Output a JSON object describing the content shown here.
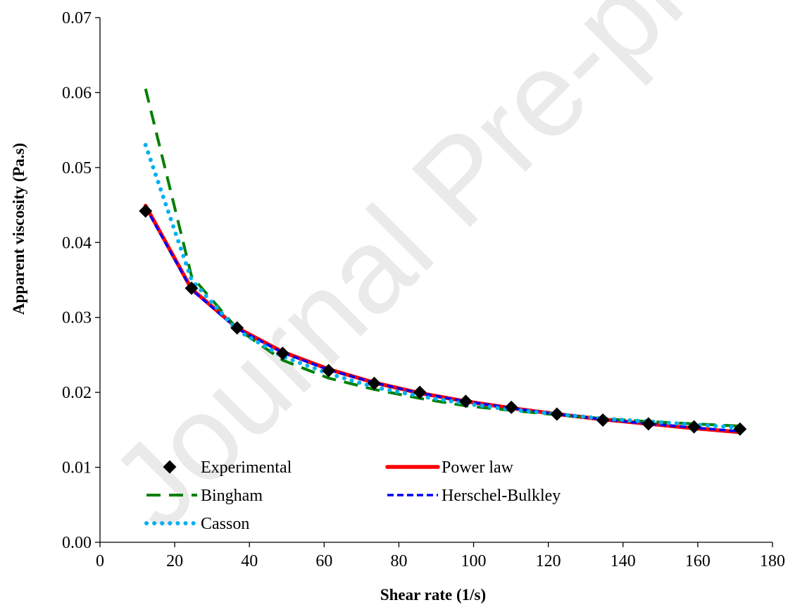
{
  "watermark": "Journal Pre-proofs",
  "chart_data": {
    "type": "line",
    "xlabel": "Shear rate (1/s)",
    "ylabel": "Apparent viscosity (Pa.s)",
    "xlim": [
      0,
      180
    ],
    "ylim": [
      0,
      0.07
    ],
    "xticks": [
      "0",
      "20",
      "40",
      "60",
      "80",
      "100",
      "120",
      "140",
      "160",
      "180"
    ],
    "yticks": [
      "0.00",
      "0.01",
      "0.02",
      "0.03",
      "0.04",
      "0.05",
      "0.06",
      "0.07"
    ],
    "grid": false,
    "legend_position": "bottom-left",
    "x": [
      12.2,
      24.5,
      36.7,
      48.9,
      61.2,
      73.4,
      85.6,
      97.9,
      110.1,
      122.3,
      134.6,
      146.8,
      159.0,
      171.3
    ],
    "series": [
      {
        "name": "Experimental",
        "style": "marker-diamond",
        "color": "#000000",
        "values": [
          0.0442,
          0.0339,
          0.0286,
          0.0252,
          0.0229,
          0.0212,
          0.02,
          0.0188,
          0.018,
          0.0171,
          0.0163,
          0.0158,
          0.0154,
          0.0151
        ]
      },
      {
        "name": "Power law",
        "style": "solid-thick",
        "color": "#ff0000",
        "values": [
          0.0449,
          0.0338,
          0.0286,
          0.0254,
          0.0231,
          0.0213,
          0.0199,
          0.0188,
          0.0179,
          0.0171,
          0.0164,
          0.0158,
          0.0152,
          0.0147
        ]
      },
      {
        "name": "Bingham",
        "style": "long-dash",
        "color": "#008000",
        "values": [
          0.0605,
          0.0355,
          0.0285,
          0.0243,
          0.0219,
          0.0204,
          0.0192,
          0.0182,
          0.0176,
          0.017,
          0.0165,
          0.0161,
          0.0158,
          0.0155
        ]
      },
      {
        "name": "Herschel-Bulkley",
        "style": "short-dash",
        "color": "#0000ff",
        "values": [
          0.0447,
          0.0337,
          0.0285,
          0.0253,
          0.023,
          0.0213,
          0.0199,
          0.0188,
          0.0179,
          0.0171,
          0.0164,
          0.0158,
          0.0153,
          0.0148
        ]
      },
      {
        "name": "Casson",
        "style": "dotted",
        "color": "#00b0f0",
        "values": [
          0.053,
          0.035,
          0.0283,
          0.0248,
          0.0225,
          0.0207,
          0.0195,
          0.0185,
          0.0177,
          0.0171,
          0.0165,
          0.0161,
          0.0157,
          0.0153
        ]
      }
    ]
  }
}
